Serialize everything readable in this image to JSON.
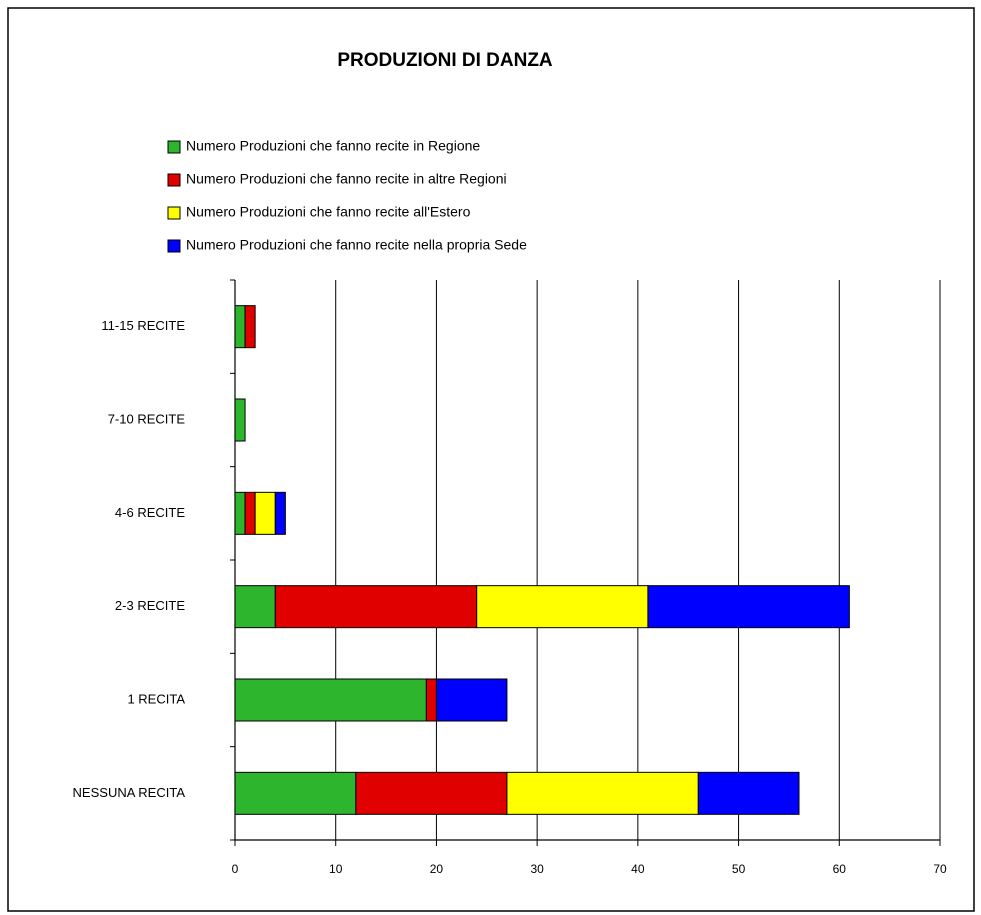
{
  "chart_data": {
    "type": "stacked_barh",
    "title": "PRODUZIONI DI DANZA",
    "categories": [
      "NESSUNA RECITA",
      "1 RECITA",
      "2-3 RECITE",
      "4-6 RECITE",
      "7-10 RECITE",
      "11-15 RECITE"
    ],
    "series": [
      {
        "name": "Numero Produzioni che fanno recite in Regione",
        "color": "#2db52d",
        "values": [
          12,
          19,
          4,
          1,
          1,
          1
        ]
      },
      {
        "name": "Numero Produzioni che fanno recite in altre Regioni",
        "color": "#e00000",
        "values": [
          15,
          1,
          20,
          1,
          0,
          1
        ]
      },
      {
        "name": "Numero Produzioni che fanno recite all'Estero",
        "color": "#ffff00",
        "values": [
          19,
          0,
          17,
          2,
          0,
          0
        ]
      },
      {
        "name": "Numero Produzioni che fanno recite nella propria Sede",
        "color": "#0000ff",
        "values": [
          10,
          7,
          20,
          1,
          0,
          0
        ]
      }
    ],
    "xlim": [
      0,
      70
    ],
    "xticks": [
      0,
      10,
      20,
      30,
      40,
      50,
      60,
      70
    ],
    "grid": true,
    "legend": "top"
  }
}
